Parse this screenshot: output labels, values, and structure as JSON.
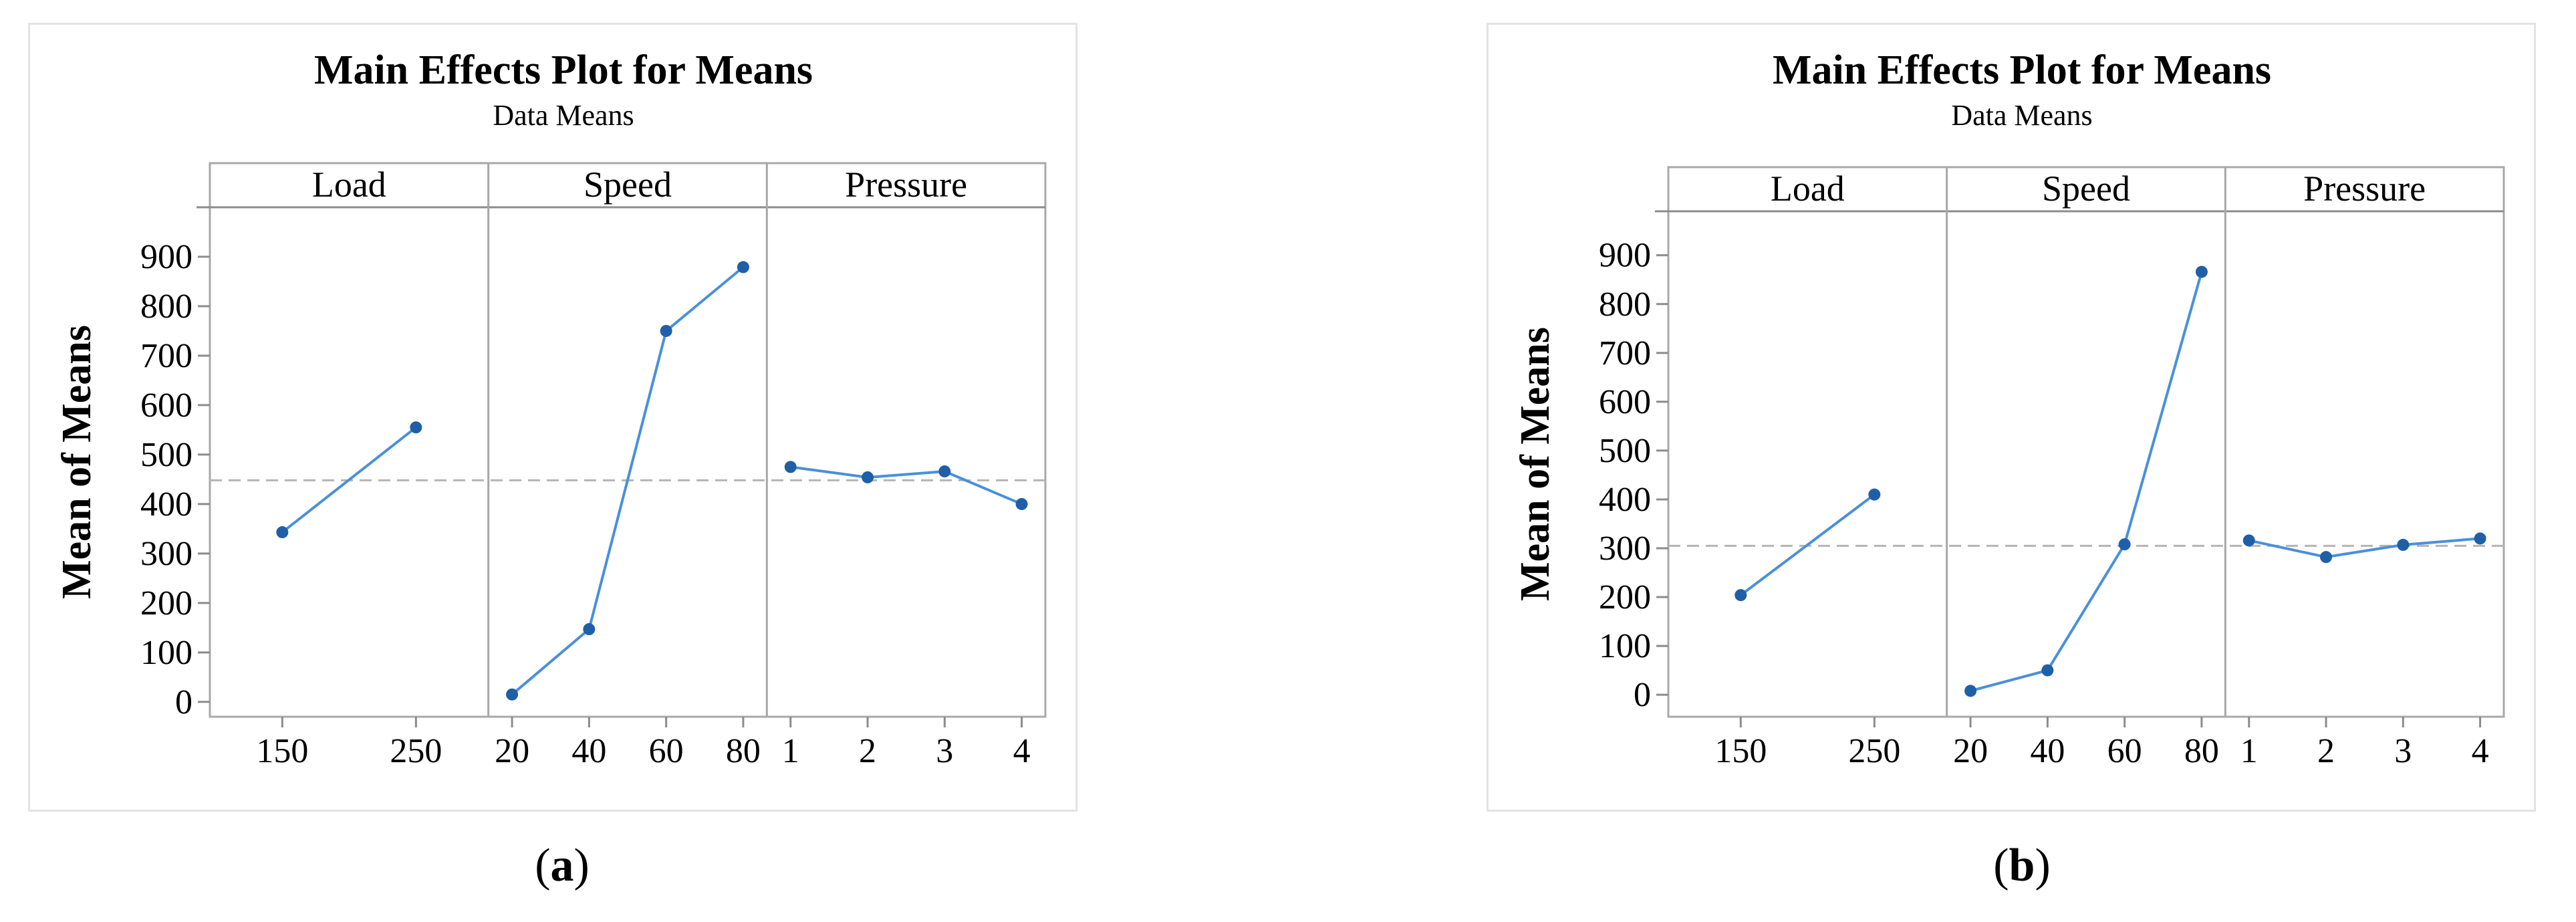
{
  "chart_data": [
    {
      "type": "line",
      "title": "Main Effects Plot for Means",
      "subtitle": "Data Means",
      "ylabel": "Mean of Means",
      "yticks": [
        "0",
        "100",
        "200",
        "300",
        "400",
        "500",
        "600",
        "700",
        "800",
        "900"
      ],
      "ylim": [
        -30,
        1000
      ],
      "reference_mean": 448,
      "grid": false,
      "line_color": "#4a90d9",
      "point_color": "#1f5fa8",
      "panels": [
        {
          "factor": "Load",
          "x": [
            "150",
            "250"
          ],
          "y": [
            343,
            555
          ]
        },
        {
          "factor": "Speed",
          "x": [
            "20",
            "40",
            "60",
            "80"
          ],
          "y": [
            15,
            147,
            750,
            879
          ]
        },
        {
          "factor": "Pressure",
          "x": [
            "1",
            "2",
            "3",
            "4"
          ],
          "y": [
            475,
            454,
            466,
            400
          ]
        }
      ],
      "caption_letter": "a"
    },
    {
      "type": "line",
      "title": "Main Effects Plot for Means",
      "subtitle": "Data Means",
      "ylabel": "Mean of Means",
      "yticks": [
        "0",
        "100",
        "200",
        "300",
        "400",
        "500",
        "600",
        "700",
        "800",
        "900"
      ],
      "ylim": [
        -45,
        990
      ],
      "reference_mean": 305,
      "grid": false,
      "line_color": "#4a90d9",
      "point_color": "#1f5fa8",
      "panels": [
        {
          "factor": "Load",
          "x": [
            "150",
            "250"
          ],
          "y": [
            204,
            410
          ]
        },
        {
          "factor": "Speed",
          "x": [
            "20",
            "40",
            "60",
            "80"
          ],
          "y": [
            8,
            50,
            308,
            866
          ]
        },
        {
          "factor": "Pressure",
          "x": [
            "1",
            "2",
            "3",
            "4"
          ],
          "y": [
            316,
            282,
            307,
            320
          ]
        }
      ],
      "caption_letter": "b"
    }
  ],
  "captions": [
    {
      "open": "(",
      "letter": "a",
      "close": ")"
    },
    {
      "open": "(",
      "letter": "b",
      "close": ")"
    }
  ]
}
